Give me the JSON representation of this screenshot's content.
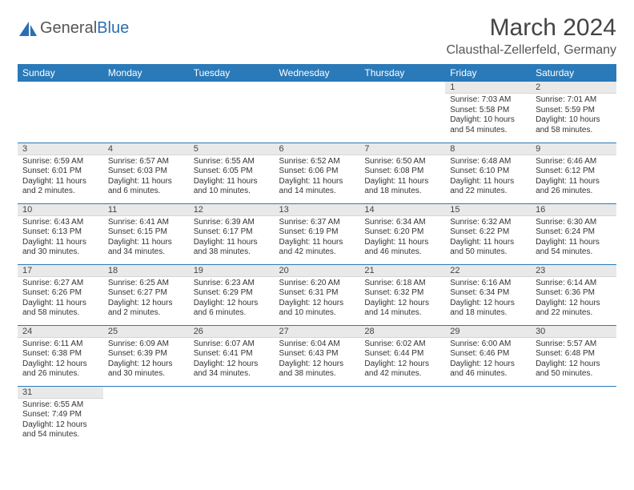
{
  "logo": {
    "text1": "General",
    "text2": "Blue"
  },
  "title": "March 2024",
  "location": "Clausthal-Zellerfeld, Germany",
  "colors": {
    "header_bg": "#2a7ab9",
    "header_text": "#ffffff",
    "daynum_bg": "#e9e9e9",
    "rule": "#2a7ab9",
    "logo_accent": "#2a6fb0"
  },
  "day_headers": [
    "Sunday",
    "Monday",
    "Tuesday",
    "Wednesday",
    "Thursday",
    "Friday",
    "Saturday"
  ],
  "weeks": [
    [
      null,
      null,
      null,
      null,
      null,
      {
        "n": "1",
        "sr": "7:03 AM",
        "ss": "5:58 PM",
        "dl": "10 hours and 54 minutes."
      },
      {
        "n": "2",
        "sr": "7:01 AM",
        "ss": "5:59 PM",
        "dl": "10 hours and 58 minutes."
      }
    ],
    [
      {
        "n": "3",
        "sr": "6:59 AM",
        "ss": "6:01 PM",
        "dl": "11 hours and 2 minutes."
      },
      {
        "n": "4",
        "sr": "6:57 AM",
        "ss": "6:03 PM",
        "dl": "11 hours and 6 minutes."
      },
      {
        "n": "5",
        "sr": "6:55 AM",
        "ss": "6:05 PM",
        "dl": "11 hours and 10 minutes."
      },
      {
        "n": "6",
        "sr": "6:52 AM",
        "ss": "6:06 PM",
        "dl": "11 hours and 14 minutes."
      },
      {
        "n": "7",
        "sr": "6:50 AM",
        "ss": "6:08 PM",
        "dl": "11 hours and 18 minutes."
      },
      {
        "n": "8",
        "sr": "6:48 AM",
        "ss": "6:10 PM",
        "dl": "11 hours and 22 minutes."
      },
      {
        "n": "9",
        "sr": "6:46 AM",
        "ss": "6:12 PM",
        "dl": "11 hours and 26 minutes."
      }
    ],
    [
      {
        "n": "10",
        "sr": "6:43 AM",
        "ss": "6:13 PM",
        "dl": "11 hours and 30 minutes."
      },
      {
        "n": "11",
        "sr": "6:41 AM",
        "ss": "6:15 PM",
        "dl": "11 hours and 34 minutes."
      },
      {
        "n": "12",
        "sr": "6:39 AM",
        "ss": "6:17 PM",
        "dl": "11 hours and 38 minutes."
      },
      {
        "n": "13",
        "sr": "6:37 AM",
        "ss": "6:19 PM",
        "dl": "11 hours and 42 minutes."
      },
      {
        "n": "14",
        "sr": "6:34 AM",
        "ss": "6:20 PM",
        "dl": "11 hours and 46 minutes."
      },
      {
        "n": "15",
        "sr": "6:32 AM",
        "ss": "6:22 PM",
        "dl": "11 hours and 50 minutes."
      },
      {
        "n": "16",
        "sr": "6:30 AM",
        "ss": "6:24 PM",
        "dl": "11 hours and 54 minutes."
      }
    ],
    [
      {
        "n": "17",
        "sr": "6:27 AM",
        "ss": "6:26 PM",
        "dl": "11 hours and 58 minutes."
      },
      {
        "n": "18",
        "sr": "6:25 AM",
        "ss": "6:27 PM",
        "dl": "12 hours and 2 minutes."
      },
      {
        "n": "19",
        "sr": "6:23 AM",
        "ss": "6:29 PM",
        "dl": "12 hours and 6 minutes."
      },
      {
        "n": "20",
        "sr": "6:20 AM",
        "ss": "6:31 PM",
        "dl": "12 hours and 10 minutes."
      },
      {
        "n": "21",
        "sr": "6:18 AM",
        "ss": "6:32 PM",
        "dl": "12 hours and 14 minutes."
      },
      {
        "n": "22",
        "sr": "6:16 AM",
        "ss": "6:34 PM",
        "dl": "12 hours and 18 minutes."
      },
      {
        "n": "23",
        "sr": "6:14 AM",
        "ss": "6:36 PM",
        "dl": "12 hours and 22 minutes."
      }
    ],
    [
      {
        "n": "24",
        "sr": "6:11 AM",
        "ss": "6:38 PM",
        "dl": "12 hours and 26 minutes."
      },
      {
        "n": "25",
        "sr": "6:09 AM",
        "ss": "6:39 PM",
        "dl": "12 hours and 30 minutes."
      },
      {
        "n": "26",
        "sr": "6:07 AM",
        "ss": "6:41 PM",
        "dl": "12 hours and 34 minutes."
      },
      {
        "n": "27",
        "sr": "6:04 AM",
        "ss": "6:43 PM",
        "dl": "12 hours and 38 minutes."
      },
      {
        "n": "28",
        "sr": "6:02 AM",
        "ss": "6:44 PM",
        "dl": "12 hours and 42 minutes."
      },
      {
        "n": "29",
        "sr": "6:00 AM",
        "ss": "6:46 PM",
        "dl": "12 hours and 46 minutes."
      },
      {
        "n": "30",
        "sr": "5:57 AM",
        "ss": "6:48 PM",
        "dl": "12 hours and 50 minutes."
      }
    ],
    [
      {
        "n": "31",
        "sr": "6:55 AM",
        "ss": "7:49 PM",
        "dl": "12 hours and 54 minutes."
      },
      null,
      null,
      null,
      null,
      null,
      null
    ]
  ],
  "labels": {
    "sunrise": "Sunrise:",
    "sunset": "Sunset:",
    "daylight": "Daylight:"
  }
}
